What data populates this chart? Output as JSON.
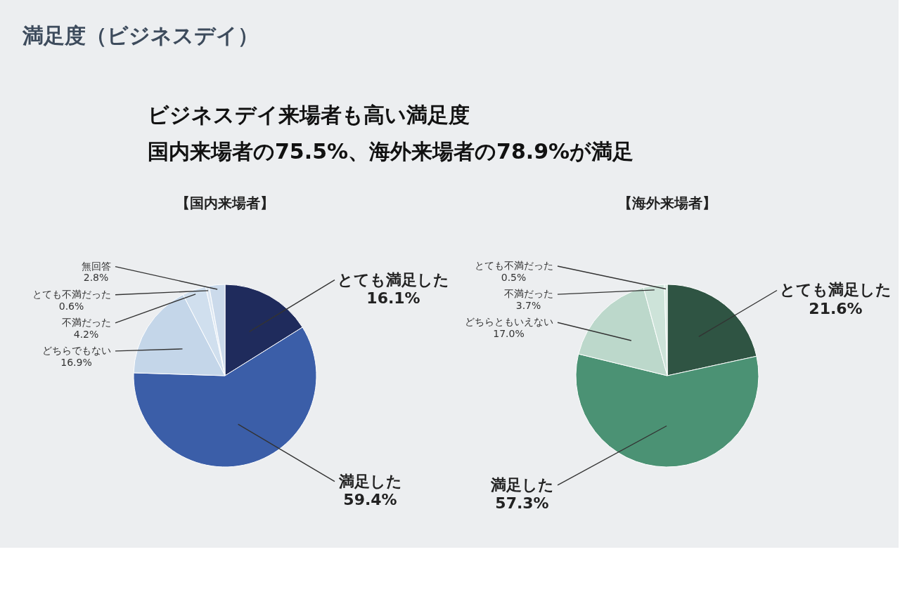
{
  "chart_data": [
    {
      "type": "other",
      "title": "満足度（ビジネスデイ）",
      "annotations": [
        "ビジネスデイ来場者も高い満足度",
        "国内来場者の75.5%、海外来場者の78.9%が満足"
      ]
    },
    {
      "type": "pie",
      "title": "【国内来場者】",
      "categories": [
        "とても満足した",
        "満足した",
        "どちらでもない",
        "不満だった",
        "とても不満だった",
        "無回答"
      ],
      "values": [
        16.1,
        59.4,
        16.9,
        4.2,
        0.6,
        2.8
      ],
      "colors": [
        "#1f2b5c",
        "#3b5ea8",
        "#c4d6e9",
        "#d0dfee",
        "#dde7f2",
        "#cbdaeb"
      ],
      "value_labels": [
        "16.1%",
        "59.4%",
        "16.9%",
        "4.2%",
        "0.6%",
        "2.8%"
      ]
    },
    {
      "type": "pie",
      "title": "【海外来場者】",
      "categories": [
        "とても満足した",
        "満足した",
        "どちらともいえない",
        "不満だった",
        "とても不満だった"
      ],
      "values": [
        21.6,
        57.3,
        17.0,
        3.7,
        0.5
      ],
      "colors": [
        "#2f5443",
        "#4b9274",
        "#bcd8cb",
        "#cde3d9",
        "#dbece4"
      ],
      "value_labels": [
        "21.6%",
        "57.3%",
        "17.0%",
        "3.7%",
        "0.5%"
      ]
    }
  ]
}
